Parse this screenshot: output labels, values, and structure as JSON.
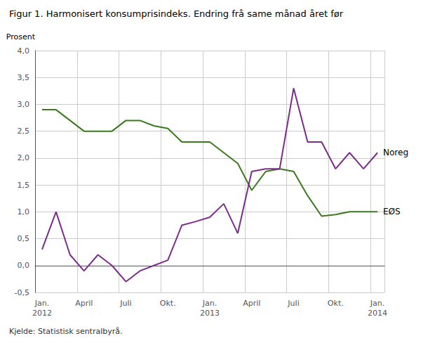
{
  "chart_data": {
    "type": "line",
    "title": "Figur 1. Harmonisert konsumprisindeks. Endring frå same månad året før",
    "ylabel": "Prosent",
    "footnote": "Kjelde: Statistisk sentralbyrå.",
    "categories": [
      "Jan.\n2012",
      null,
      null,
      "April",
      null,
      null,
      "Juli",
      null,
      null,
      "Okt.",
      null,
      null,
      "Jan.\n2013",
      null,
      null,
      "April",
      null,
      null,
      "Juli",
      null,
      null,
      "Okt.",
      null,
      null,
      "Jan.\n2014"
    ],
    "series": [
      {
        "name": "EØS",
        "color": "#3a7a1e",
        "values": [
          2.9,
          2.9,
          2.7,
          2.5,
          2.5,
          2.5,
          2.7,
          2.7,
          2.6,
          2.55,
          2.3,
          2.3,
          2.3,
          2.1,
          1.9,
          1.4,
          1.75,
          1.8,
          1.75,
          1.3,
          0.92,
          0.95,
          1.0,
          1.0,
          1.0
        ]
      },
      {
        "name": "Noreg",
        "color": "#7b2d8b",
        "values": [
          0.3,
          1.0,
          0.2,
          -0.1,
          0.2,
          0.0,
          -0.3,
          -0.1,
          0.0,
          0.1,
          0.75,
          0.82,
          0.9,
          1.15,
          0.6,
          1.75,
          1.8,
          1.8,
          3.3,
          2.3,
          2.3,
          1.8,
          2.1,
          1.8,
          2.1
        ]
      }
    ],
    "ylim": [
      -0.5,
      4.0
    ],
    "yticks": [
      {
        "value": -0.5,
        "label": "-0,5"
      },
      {
        "value": 0.0,
        "label": "0,0"
      },
      {
        "value": 0.5,
        "label": "0,5"
      },
      {
        "value": 1.0,
        "label": "1,0"
      },
      {
        "value": 1.5,
        "label": "1,5"
      },
      {
        "value": 2.0,
        "label": "2,0"
      },
      {
        "value": 2.5,
        "label": "2,5"
      },
      {
        "value": 3.0,
        "label": "3,0"
      },
      {
        "value": 3.5,
        "label": "3,5"
      },
      {
        "value": 4.0,
        "label": "4,0"
      }
    ],
    "grid": true
  }
}
